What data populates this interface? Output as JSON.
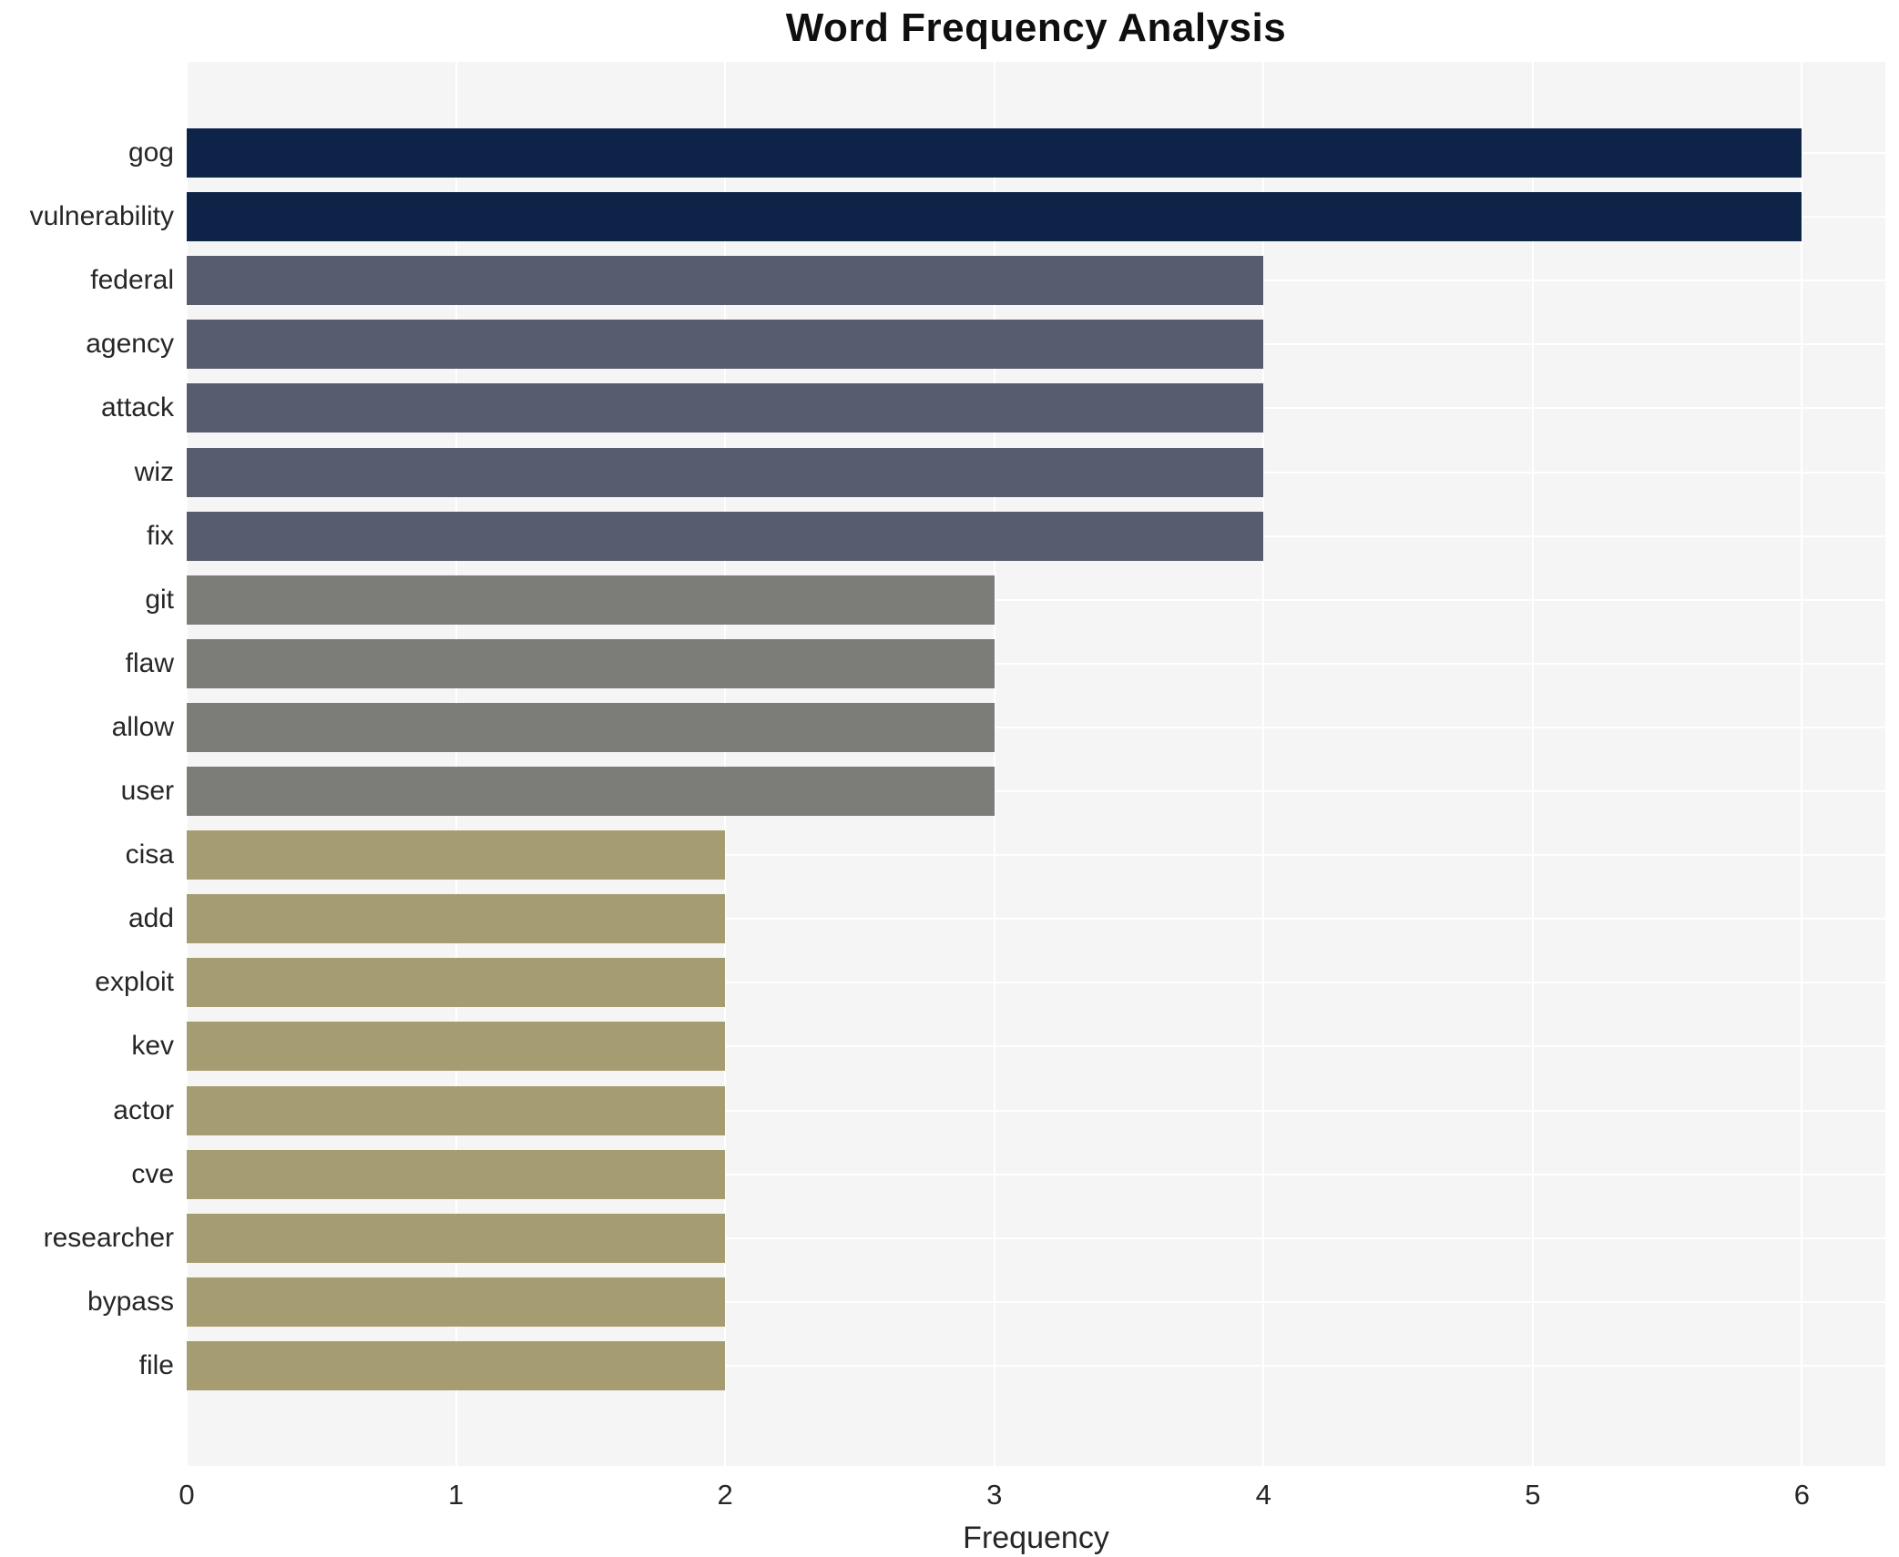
{
  "title": "Word Frequency Analysis",
  "chart_data": {
    "type": "bar",
    "orientation": "horizontal",
    "title": "Word Frequency Analysis",
    "xlabel": "Frequency",
    "ylabel": "",
    "xlim": [
      0,
      6
    ],
    "xticks": [
      "0",
      "1",
      "2",
      "3",
      "4",
      "5",
      "6"
    ],
    "grid": true,
    "legend": "none",
    "categories": [
      "gog",
      "vulnerability",
      "federal",
      "agency",
      "attack",
      "wiz",
      "fix",
      "git",
      "flaw",
      "allow",
      "user",
      "cisa",
      "add",
      "exploit",
      "kev",
      "actor",
      "cve",
      "researcher",
      "bypass",
      "file"
    ],
    "values": [
      6,
      6,
      4,
      4,
      4,
      4,
      4,
      3,
      3,
      3,
      3,
      2,
      2,
      2,
      2,
      2,
      2,
      2,
      2,
      2
    ],
    "bar_colors": [
      "#0d2348",
      "#0d2348",
      "#575c6e",
      "#575c6e",
      "#575c6e",
      "#575c6e",
      "#575c6e",
      "#7c7c79",
      "#7c7c79",
      "#7c7c79",
      "#7c7c79",
      "#a59d71",
      "#a59d71",
      "#a59d71",
      "#a59d71",
      "#a59d71",
      "#a59d71",
      "#a59d71",
      "#a59d71",
      "#a59d71"
    ],
    "colors": {
      "plot_background": "#f5f5f6",
      "figure_background": "#ffffff",
      "gridline": "#ffffff",
      "text": "#262626",
      "value_6": "#0d2348",
      "value_4": "#575c6e",
      "value_3": "#7c7c79",
      "value_2": "#a59d71"
    }
  }
}
